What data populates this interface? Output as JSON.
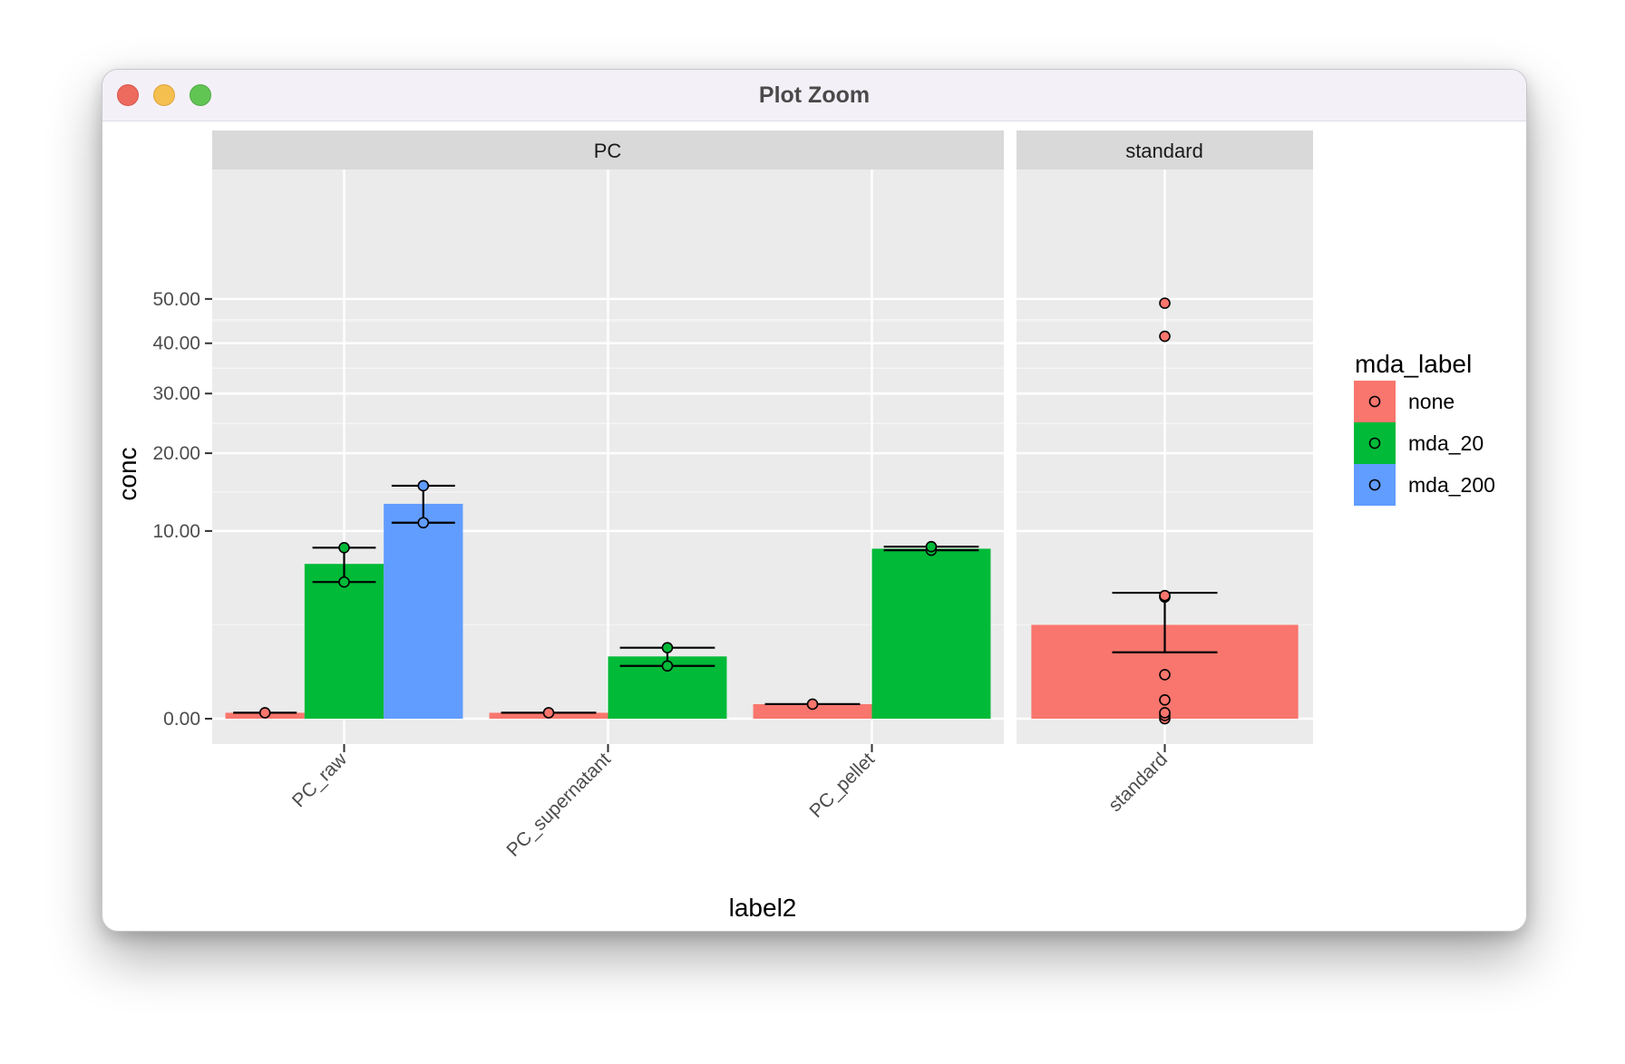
{
  "window": {
    "title": "Plot Zoom"
  },
  "chart_data": {
    "type": "bar",
    "title": "",
    "xlabel": "label2",
    "ylabel": "conc",
    "y_scale": "sqrt",
    "ylim": [
      0,
      60
    ],
    "y_ticks": [
      {
        "value": 0,
        "label": "0.00"
      },
      {
        "value": 10,
        "label": "10.00"
      },
      {
        "value": 20,
        "label": "20.00"
      },
      {
        "value": 30,
        "label": "30.00"
      },
      {
        "value": 40,
        "label": "40.00"
      },
      {
        "value": 50,
        "label": "50.00"
      }
    ],
    "grid": true,
    "legend": {
      "title": "mda_label",
      "position": "right",
      "entries": [
        {
          "name": "none",
          "color": "#F8766D"
        },
        {
          "name": "mda_20",
          "color": "#00BA38"
        },
        {
          "name": "mda_200",
          "color": "#619CFF"
        }
      ]
    },
    "facets": [
      {
        "label": "PC",
        "categories": [
          "PC_raw",
          "PC_supernatant",
          "PC_pellet"
        ],
        "bars": [
          {
            "category": "PC_raw",
            "group": "none",
            "mean": 0.01,
            "error": [
              0.01,
              0.01
            ],
            "points": [
              0.01
            ]
          },
          {
            "category": "PC_raw",
            "group": "mda_20",
            "mean": 6.8,
            "error": [
              5.3,
              8.3
            ],
            "points": [
              5.3,
              8.3
            ]
          },
          {
            "category": "PC_raw",
            "group": "mda_200",
            "mean": 13.1,
            "error": [
              10.9,
              15.4
            ],
            "points": [
              10.9,
              15.4
            ]
          },
          {
            "category": "PC_supernatant",
            "group": "none",
            "mean": 0.01,
            "error": [
              0.01,
              0.01
            ],
            "points": [
              0.01
            ]
          },
          {
            "category": "PC_supernatant",
            "group": "mda_20",
            "mean": 1.1,
            "error": [
              0.79,
              1.43
            ],
            "points": [
              0.79,
              1.43
            ]
          },
          {
            "category": "PC_pellet",
            "group": "none",
            "mean": 0.06,
            "error": [
              0.06,
              0.06
            ],
            "points": [
              0.06
            ]
          },
          {
            "category": "PC_pellet",
            "group": "mda_20",
            "mean": 8.2,
            "error": [
              8.05,
              8.4
            ],
            "points": [
              8.05,
              8.4
            ]
          }
        ]
      },
      {
        "label": "standard",
        "categories": [
          "standard"
        ],
        "bars": [
          {
            "category": "standard",
            "group": "none",
            "mean": 2.5,
            "error": [
              1.25,
              4.5
            ],
            "points": [
              0.0,
              0.003,
              0.01,
              0.1,
              0.55,
              4.2,
              4.3,
              41.5,
              49.0
            ]
          }
        ]
      }
    ]
  }
}
